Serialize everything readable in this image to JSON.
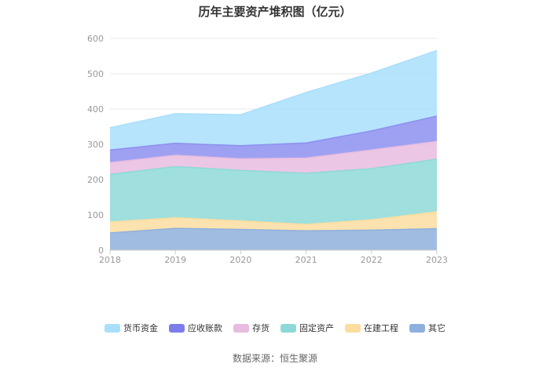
{
  "chart_data": {
    "type": "area",
    "stacked": true,
    "title": "历年主要资产堆积图（亿元）",
    "categories": [
      "2018",
      "2019",
      "2020",
      "2021",
      "2022",
      "2023"
    ],
    "y_ticks": [
      "0",
      "100",
      "200",
      "300",
      "400",
      "500",
      "600"
    ],
    "ylim": [
      0,
      600
    ],
    "series": [
      {
        "name": "其它",
        "color": "#8fb0dc",
        "values": [
          49,
          62,
          59,
          55,
          57,
          61
        ]
      },
      {
        "name": "在建工程",
        "color": "#fbdda0",
        "values": [
          31,
          30,
          24,
          18,
          29,
          48
        ]
      },
      {
        "name": "固定资产",
        "color": "#8ed9d8",
        "values": [
          135,
          145,
          143,
          145,
          145,
          149
        ]
      },
      {
        "name": "存货",
        "color": "#e7bce0",
        "values": [
          33,
          32,
          33,
          43,
          53,
          50
        ]
      },
      {
        "name": "应收账款",
        "color": "#8d90ef",
        "values": [
          36,
          34,
          37,
          43,
          54,
          72
        ]
      },
      {
        "name": "货币资金",
        "color": "#a9dffb",
        "values": [
          63,
          84,
          88,
          143,
          164,
          186
        ]
      }
    ],
    "legend_order": [
      "货币资金",
      "应收账款",
      "存货",
      "固定资产",
      "在建工程",
      "其它"
    ],
    "legend_colors": [
      "#a9dffb",
      "#7b7eea",
      "#e7bce0",
      "#8ed9d8",
      "#fbdda0",
      "#8fb0dc"
    ]
  },
  "source": "数据来源：恒生聚源"
}
